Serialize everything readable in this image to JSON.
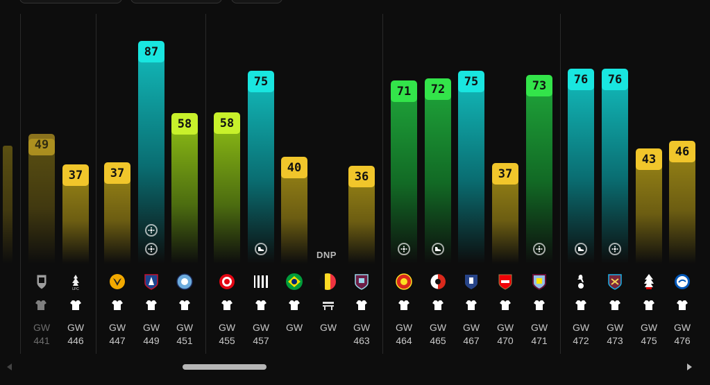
{
  "colors": {
    "yellow": "#f1c62b",
    "lime": "#c8f12b",
    "cyan": "#19e6e0",
    "green": "#33e44a"
  },
  "fixtures": [
    {
      "score": "49",
      "color": "yellow",
      "faded": true,
      "club": "fulham-badge-icon",
      "gw_label": "GW",
      "gw_num": "441",
      "status": "played"
    },
    {
      "score": "37",
      "color": "yellow",
      "faded": false,
      "club": "liverpool-badge-icon",
      "gw_label": "GW",
      "gw_num": "446",
      "status": "played"
    },
    {
      "score": "37",
      "color": "yellow",
      "faded": false,
      "club": "wolves-badge-icon",
      "gw_label": "GW",
      "gw_num": "447",
      "status": "played"
    },
    {
      "score": "87",
      "color": "cyan",
      "faded": false,
      "club": "crystal-palace-badge-icon",
      "gw_label": "GW",
      "gw_num": "449",
      "status": "played",
      "events": [
        "goal-icon",
        "goal-icon"
      ]
    },
    {
      "score": "58",
      "color": "lime",
      "faded": false,
      "club": "man-city-badge-icon",
      "gw_label": "GW",
      "gw_num": "451",
      "status": "played"
    },
    {
      "score": "58",
      "color": "lime",
      "faded": false,
      "club": "brentford-badge-icon",
      "gw_label": "GW",
      "gw_num": "455",
      "status": "played"
    },
    {
      "score": "75",
      "color": "cyan",
      "faded": false,
      "club": "newcastle-badge-icon",
      "gw_label": "GW",
      "gw_num": "457",
      "status": "played",
      "events": [
        "assist-boot-icon"
      ]
    },
    {
      "score": "40",
      "color": "yellow",
      "faded": false,
      "club": "brazil-flag-icon",
      "gw_label": "GW",
      "gw_num": "",
      "status": "played"
    },
    {
      "score": "",
      "color": "none",
      "faded": false,
      "club": "belgium-flag-icon",
      "gw_label": "GW",
      "gw_num": "",
      "status": "dnp",
      "dnp_label": "DNP"
    },
    {
      "score": "36",
      "color": "yellow",
      "faded": false,
      "club": "burnley-badge-icon",
      "gw_label": "GW",
      "gw_num": "463",
      "status": "played"
    },
    {
      "score": "71",
      "color": "green",
      "faded": false,
      "club": "man-united-badge-icon",
      "gw_label": "GW",
      "gw_num": "464",
      "status": "played",
      "events": [
        "goal-icon"
      ]
    },
    {
      "score": "72",
      "color": "green",
      "faded": false,
      "club": "bournemouth-badge-icon",
      "gw_label": "GW",
      "gw_num": "465",
      "status": "played",
      "events": [
        "assist-boot-icon"
      ]
    },
    {
      "score": "75",
      "color": "cyan",
      "faded": false,
      "club": "everton-badge-icon",
      "gw_label": "GW",
      "gw_num": "467",
      "status": "played"
    },
    {
      "score": "37",
      "color": "yellow",
      "faded": false,
      "club": "arsenal-badge-icon",
      "gw_label": "GW",
      "gw_num": "470",
      "status": "played"
    },
    {
      "score": "73",
      "color": "green",
      "faded": false,
      "club": "aston-villa-badge-icon",
      "gw_label": "GW",
      "gw_num": "471",
      "status": "played",
      "events": [
        "goal-icon"
      ]
    },
    {
      "score": "76",
      "color": "cyan",
      "faded": false,
      "club": "tottenham-badge-icon",
      "gw_label": "GW",
      "gw_num": "472",
      "status": "played",
      "events": [
        "assist-boot-icon"
      ]
    },
    {
      "score": "76",
      "color": "cyan",
      "faded": false,
      "club": "west-ham-badge-icon",
      "gw_label": "GW",
      "gw_num": "473",
      "status": "played",
      "events": [
        "goal-icon"
      ]
    },
    {
      "score": "43",
      "color": "yellow",
      "faded": false,
      "club": "nottingham-forest-badge-icon",
      "gw_label": "GW",
      "gw_num": "475",
      "status": "played"
    },
    {
      "score": "46",
      "color": "yellow",
      "faded": false,
      "club": "brighton-badge-icon",
      "gw_label": "GW",
      "gw_num": "476",
      "status": "played"
    }
  ]
}
